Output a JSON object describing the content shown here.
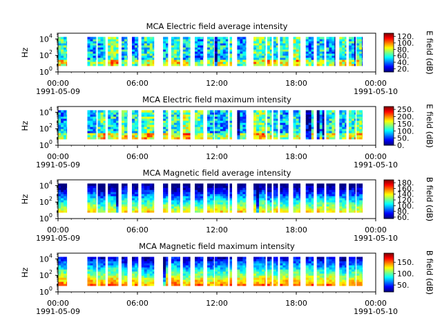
{
  "figure": {
    "background": "#ffffff"
  },
  "chart_data": [
    {
      "type": "heatmap",
      "title": "MCA  Electric field average intensity",
      "ylabel": "Hz",
      "y_scale": "log",
      "y_ticks": [
        {
          "base": "10",
          "exp": "0"
        },
        {
          "base": "10",
          "exp": "2"
        },
        {
          "base": "10",
          "exp": "4"
        }
      ],
      "x_ticks": [
        "00:00",
        "06:00",
        "12:00",
        "18:00",
        "00:00"
      ],
      "x_dates": [
        "1991-05-09",
        "1991-05-10"
      ],
      "colorbar": {
        "label": "E field (dB)",
        "ticks": [
          "120.",
          "100.",
          "80.",
          "60.",
          "40.",
          "20."
        ],
        "range": [
          10,
          130
        ]
      },
      "mean_level": 55
    },
    {
      "type": "heatmap",
      "title": "MCA  Electric field maximum intensity",
      "ylabel": "Hz",
      "y_scale": "log",
      "y_ticks": [
        {
          "base": "10",
          "exp": "0"
        },
        {
          "base": "10",
          "exp": "2"
        },
        {
          "base": "10",
          "exp": "4"
        }
      ],
      "x_ticks": [
        "00:00",
        "06:00",
        "12:00",
        "18:00",
        "00:00"
      ],
      "x_dates": [
        "1991-05-09",
        "1991-05-10"
      ],
      "colorbar": {
        "label": "E field (dB)",
        "ticks": [
          "250.",
          "200.",
          "150.",
          "100.",
          "50.",
          "0."
        ],
        "range": [
          0,
          270
        ]
      },
      "mean_level": 110
    },
    {
      "type": "heatmap",
      "title": "MCA  Magnetic field average intensity",
      "ylabel": "Hz",
      "y_scale": "log",
      "y_ticks": [
        {
          "base": "10",
          "exp": "0"
        },
        {
          "base": "10",
          "exp": "2"
        },
        {
          "base": "10",
          "exp": "4"
        }
      ],
      "x_ticks": [
        "00:00",
        "06:00",
        "12:00",
        "18:00",
        "00:00"
      ],
      "x_dates": [
        "1991-05-09",
        "1991-05-10"
      ],
      "colorbar": {
        "label": "B field (dB)",
        "ticks": [
          "180.",
          "160.",
          "140.",
          "120.",
          "100.",
          "80.",
          "60."
        ],
        "range": [
          55,
          190
        ]
      },
      "mean_level": 115
    },
    {
      "type": "heatmap",
      "title": "MCA  Magnetic field maximum intensity",
      "ylabel": "Hz",
      "y_scale": "log",
      "y_ticks": [
        {
          "base": "10",
          "exp": "0"
        },
        {
          "base": "10",
          "exp": "2"
        },
        {
          "base": "10",
          "exp": "4"
        }
      ],
      "x_ticks": [
        "00:00",
        "06:00",
        "12:00",
        "18:00",
        "00:00"
      ],
      "x_dates": [
        "1991-05-09",
        "1991-05-10"
      ],
      "colorbar": {
        "label": "B field (dB)",
        "ticks": [
          "150.",
          "100.",
          "50."
        ],
        "range": [
          20,
          190
        ]
      },
      "mean_level": 115
    }
  ]
}
